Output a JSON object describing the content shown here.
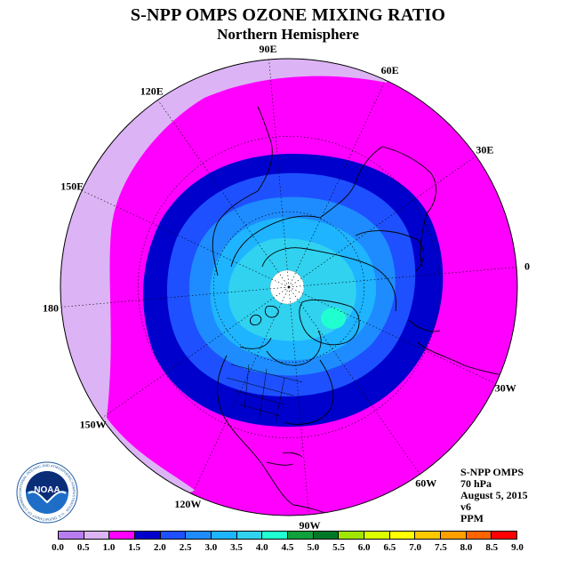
{
  "title": "S-NPP OMPS OZONE MIXING RATIO",
  "subtitle": "Northern Hemisphere",
  "longitude_labels": [
    "90E",
    "60E",
    "30E",
    "0",
    "30W",
    "60W",
    "90W",
    "120W",
    "150W",
    "180",
    "150E",
    "120E"
  ],
  "info": {
    "instrument": "S-NPP OMPS",
    "level": "70 hPa",
    "date": "August 5, 2015",
    "version": "v6",
    "units": "PPM"
  },
  "colorbar": {
    "ticks": [
      "0.0",
      "0.5",
      "1.0",
      "1.5",
      "2.0",
      "2.5",
      "3.0",
      "3.5",
      "4.0",
      "4.5",
      "5.0",
      "5.5",
      "6.0",
      "6.5",
      "7.0",
      "7.5",
      "8.0",
      "8.5",
      "9.0"
    ],
    "colors": [
      "#b87df0",
      "#dcb4f5",
      "#ff00ff",
      "#0000cd",
      "#1e50ff",
      "#1e8cff",
      "#1eb4ff",
      "#30d2f0",
      "#20ffd0",
      "#10a03c",
      "#007828",
      "#a0e600",
      "#dcff00",
      "#ffff00",
      "#ffc800",
      "#ffa000",
      "#ff6400",
      "#ff0000",
      "#8c5a32"
    ]
  },
  "logo": {
    "text": "NOAA",
    "ring_text": "NATIONAL OCEANIC AND ATMOSPHERIC ADMINISTRATION · U.S. DEPARTMENT OF COMMERCE"
  }
}
